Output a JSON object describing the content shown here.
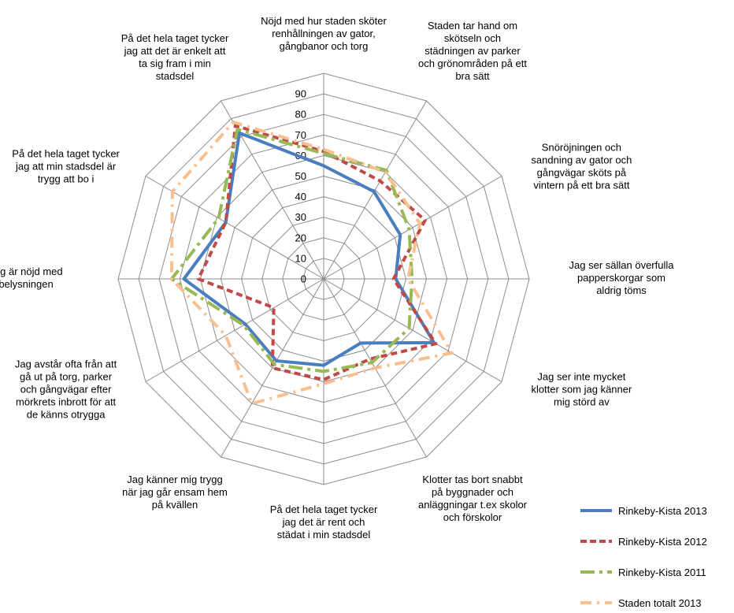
{
  "chart_data": {
    "type": "radar",
    "title": "",
    "categories": [
      "Nöjd med hur staden sköter renhållningen av gator, gångbanor och torg",
      "Staden tar hand om skötseln och städningen av parker och grönområden på ett bra sätt",
      "Snöröjningen och sandning av gator och gångvägar sköts på vintern på ett bra sätt",
      "Jag ser sällan överfulla papperskorgar som aldrig töms",
      "Jag ser inte mycket klotter som jag känner mig störd av",
      "Klotter tas bort snabbt på byggnader och anläggningar t.ex skolor och förskolor",
      "På det hela taget tycker jag det är rent och städat i min stadsdel",
      "Jag känner mig trygg när jag går ensam hem på kvällen",
      "Jag avstår ofta från att gå ut på torg, parker och gångvägar efter mörkrets inbrott för att de känns otrygga",
      "Jag är nöjd med belysningen",
      "På det hela taget tycker jag att min stadsdel är trygg att bo i",
      "På det hela taget tycker jag att det är enkelt att ta sig fram i min stadsdel"
    ],
    "category_lines": [
      [
        "Nöjd med hur staden sköter",
        "renhållningen av gator,",
        "gångbanor och torg"
      ],
      [
        "Staden tar hand om",
        "skötseln och",
        "städningen av parker",
        "och grönområden på ett",
        "bra sätt"
      ],
      [
        "Snöröjningen och",
        "sandning av gator och",
        "gångvägar sköts på",
        "vintern på ett bra sätt"
      ],
      [
        "Jag ser sällan överfulla",
        "papperskorgar som",
        "aldrig töms"
      ],
      [
        "Jag ser inte mycket",
        "klotter som jag känner",
        "mig störd av"
      ],
      [
        "Klotter tas bort snabbt",
        "på byggnader och",
        "anläggningar t.ex skolor",
        "och förskolor"
      ],
      [
        "På det hela taget tycker",
        "jag det är rent och",
        "städat i min stadsdel"
      ],
      [
        "Jag känner mig trygg",
        "när jag går ensam hem",
        "på kvällen"
      ],
      [
        "Jag avstår ofta från att",
        "gå ut på torg, parker",
        "och gångvägar efter",
        "mörkrets inbrott för att",
        "de känns otrygga"
      ],
      [
        "Jag är nöjd med",
        "belysningen"
      ],
      [
        "På det hela taget tycker",
        "jag att min stadsdel är",
        "trygg att bo i"
      ],
      [
        "På det hela taget tycker",
        "jag att det är enkelt att",
        "ta sig fram i min",
        "stadsdel"
      ]
    ],
    "rmin": 0,
    "rmax": 100,
    "ticks": [
      0,
      10,
      20,
      30,
      40,
      50,
      60,
      70,
      80,
      90
    ],
    "grid": true,
    "legend_position": "bottom-right",
    "series": [
      {
        "name": "Rinkeby-Kista 2013",
        "color": "#4a7ebf",
        "dash": "solid",
        "values": [
          55,
          49,
          43,
          35,
          62,
          36,
          42,
          46,
          44,
          68,
          55,
          82
        ]
      },
      {
        "name": "Rinkeby-Kista 2012",
        "color": "#be4b48",
        "dash": "dash",
        "values": [
          62,
          55,
          57,
          34,
          63,
          45,
          49,
          50,
          28,
          61,
          55,
          86
        ]
      },
      {
        "name": "Rinkeby-Kista 2011",
        "color": "#98b954",
        "dash": "longdashdot",
        "values": [
          61,
          61,
          48,
          43,
          48,
          47,
          45,
          48,
          45,
          74,
          59,
          84
        ]
      },
      {
        "name": "Staden totalt 2013",
        "color": "#f9bf8f",
        "dash": "dashdot",
        "values": [
          63,
          60,
          54,
          41,
          72,
          50,
          51,
          70,
          55,
          74,
          85,
          88
        ]
      }
    ]
  }
}
